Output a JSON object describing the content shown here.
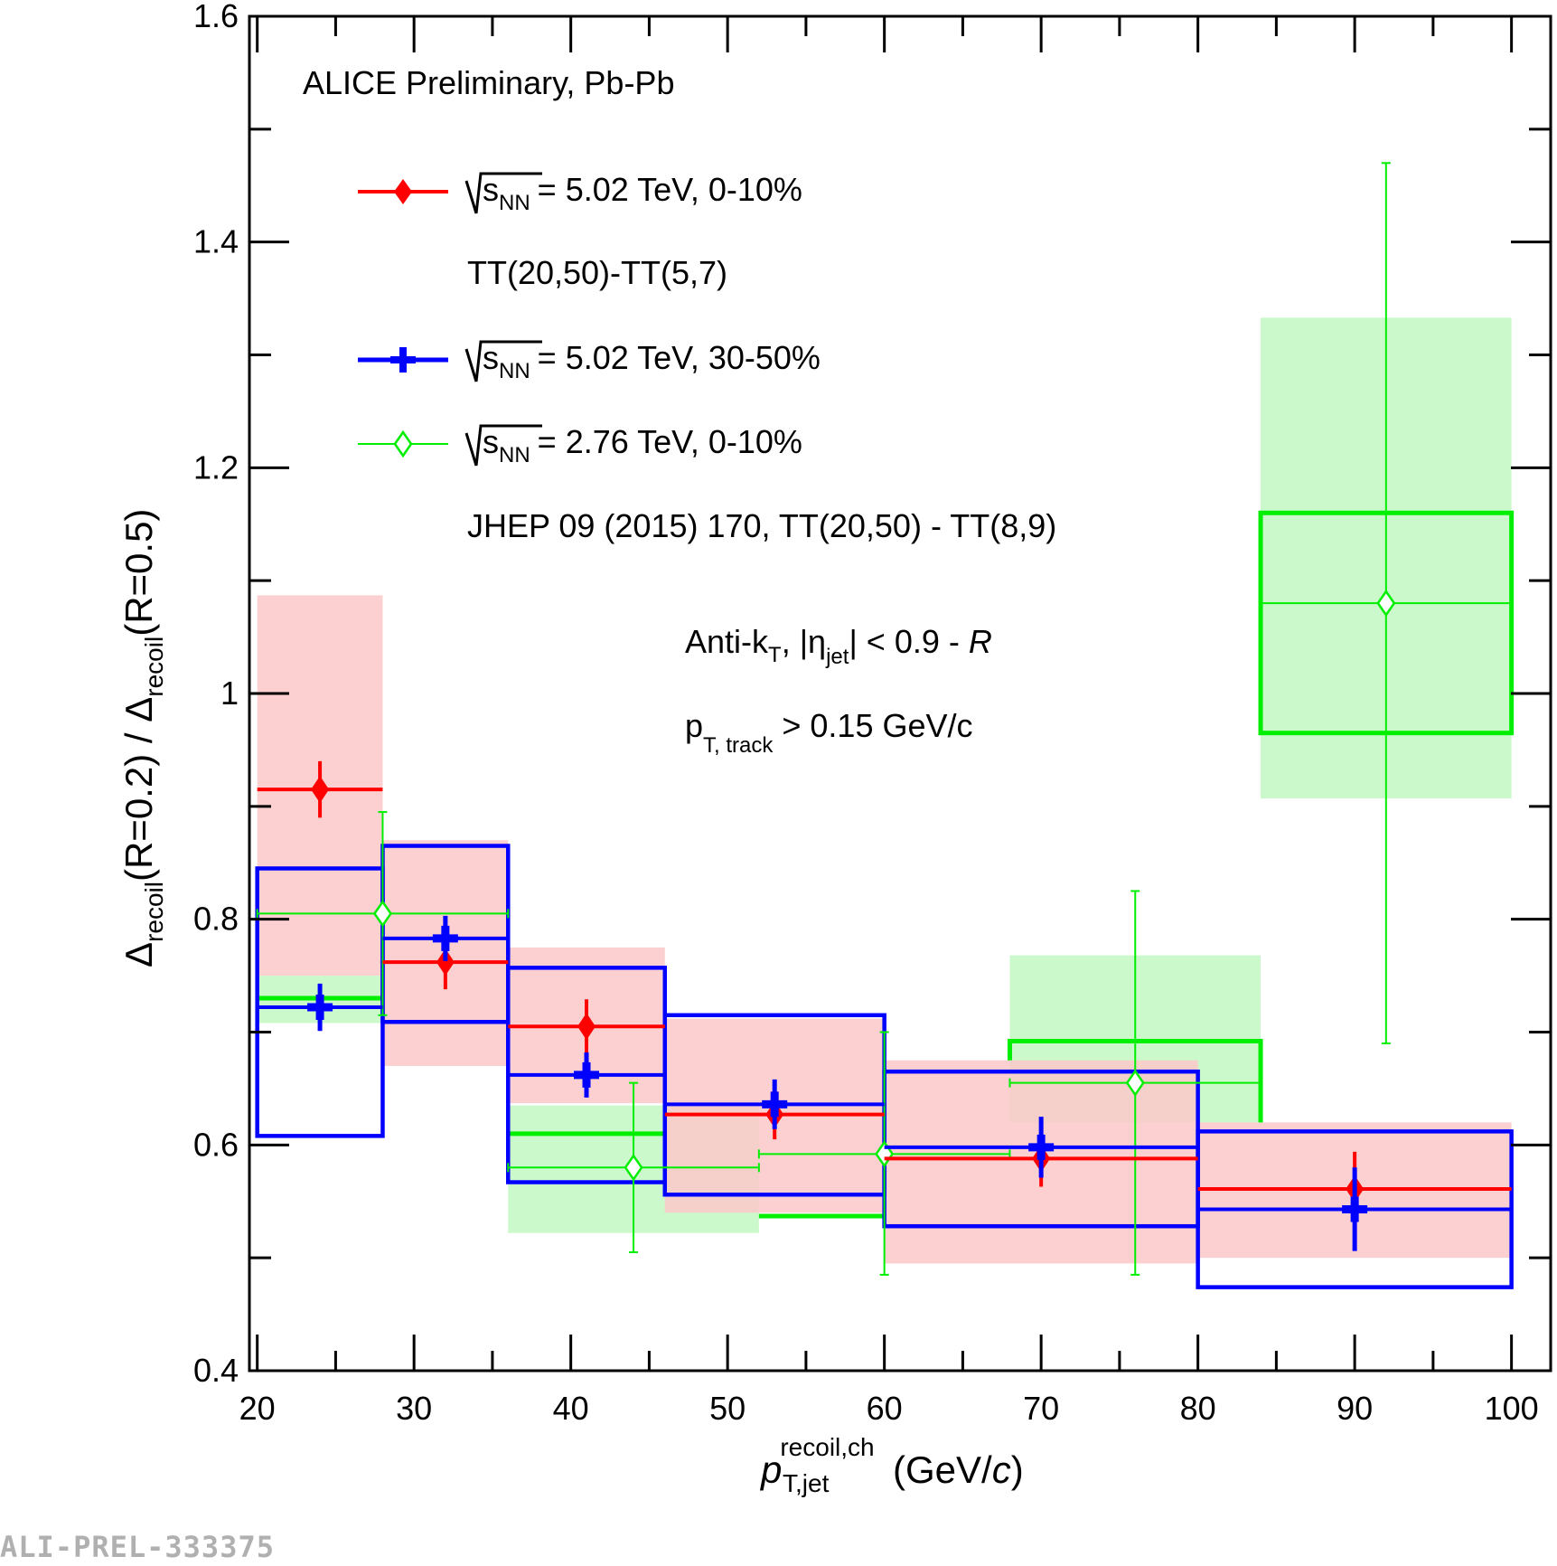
{
  "chart_data": {
    "type": "scatter",
    "title": "ALICE Preliminary, Pb-Pb",
    "xlabel": "p_T,jet^recoil,ch (GeV/c)",
    "ylabel": "Δrecoil(R=0.2) / Δrecoil(R=0.5)",
    "xlim": [
      19.5,
      102.5
    ],
    "ylim": [
      0.4,
      1.6
    ],
    "x_ticks": [
      20,
      30,
      40,
      50,
      60,
      70,
      80,
      90,
      100
    ],
    "y_ticks": [
      0.4,
      0.6,
      0.8,
      1,
      1.2,
      1.4,
      1.6
    ],
    "x_tick_labels": [
      "20",
      "30",
      "40",
      "50",
      "60",
      "70",
      "80",
      "90",
      "100"
    ],
    "y_tick_labels": [
      "0.4",
      "0.6",
      "0.8",
      "1",
      "1.2",
      "1.4",
      "1.6"
    ],
    "annotations": {
      "jet_def": "Anti-k",
      "jet_def_sub": "T",
      "jet_def_mid": ", |η",
      "jet_def_sub2": "jet",
      "jet_def_end": "| < 0.9 - ",
      "jet_def_R": "R",
      "track_cut": "p",
      "track_cut_sub": "T, track",
      "track_cut_end": " > 0.15 GeV/c",
      "x_title_p": "p",
      "x_title_sup": "recoil,ch",
      "x_title_sub": "T,jet",
      "x_title_end": " (GeV/",
      "x_title_c": "c",
      "x_title_close": ")",
      "y_title_delta": "Δ",
      "y_title_sub": "recoil",
      "y_title_mid": "(R=0.2) / ",
      "y_title_end": "(R=0.5)",
      "sqrt_s": "s",
      "sqrt_sub": "NN"
    },
    "series": [
      {
        "name": "= 5.02 TeV, 0-10%",
        "subtitle": "TT(20,50)-TT(5,7)",
        "color": "#ff0000",
        "marker": "diamond-filled",
        "syst_style": "filled-box",
        "syst_color": "#fcc8c8",
        "points": [
          {
            "x": 24,
            "x_low": 20,
            "x_high": 28,
            "y": 0.915,
            "stat": 0.025,
            "syst_low": 0.75,
            "syst_high": 1.087
          },
          {
            "x": 32,
            "x_low": 28,
            "x_high": 36,
            "y": 0.762,
            "stat": 0.024,
            "syst_low": 0.67,
            "syst_high": 0.87
          },
          {
            "x": 41,
            "x_low": 36,
            "x_high": 46,
            "y": 0.705,
            "stat": 0.024,
            "syst_low": 0.637,
            "syst_high": 0.775
          },
          {
            "x": 53,
            "x_low": 46,
            "x_high": 60,
            "y": 0.627,
            "stat": 0.022,
            "syst_low": 0.54,
            "syst_high": 0.712
          },
          {
            "x": 70,
            "x_low": 60,
            "x_high": 80,
            "y": 0.588,
            "stat": 0.025,
            "syst_low": 0.495,
            "syst_high": 0.675
          },
          {
            "x": 90,
            "x_low": 80,
            "x_high": 100,
            "y": 0.561,
            "stat": 0.033,
            "syst_low": 0.5,
            "syst_high": 0.62
          }
        ]
      },
      {
        "name": "= 5.02 TeV, 30-50%",
        "subtitle": "",
        "color": "#0000ff",
        "marker": "cross-filled",
        "syst_style": "open-box",
        "points": [
          {
            "x": 24,
            "x_low": 20,
            "x_high": 28,
            "y": 0.722,
            "stat": 0.021,
            "syst_low": 0.608,
            "syst_high": 0.845
          },
          {
            "x": 32,
            "x_low": 28,
            "x_high": 36,
            "y": 0.783,
            "stat": 0.02,
            "syst_low": 0.709,
            "syst_high": 0.865
          },
          {
            "x": 41,
            "x_low": 36,
            "x_high": 46,
            "y": 0.662,
            "stat": 0.02,
            "syst_low": 0.567,
            "syst_high": 0.757
          },
          {
            "x": 53,
            "x_low": 46,
            "x_high": 60,
            "y": 0.636,
            "stat": 0.022,
            "syst_low": 0.556,
            "syst_high": 0.715
          },
          {
            "x": 70,
            "x_low": 60,
            "x_high": 80,
            "y": 0.598,
            "stat": 0.027,
            "syst_low": 0.528,
            "syst_high": 0.665
          },
          {
            "x": 90,
            "x_low": 80,
            "x_high": 100,
            "y": 0.543,
            "stat": 0.037,
            "syst_low": 0.474,
            "syst_high": 0.612
          }
        ]
      },
      {
        "name": "= 2.76 TeV, 0-10%",
        "subtitle": "JHEP 09 (2015) 170, TT(20,50) - TT(8,9)",
        "color": "#00ee00",
        "marker": "diamond-open",
        "syst_color": "#ccf9cc",
        "points": [
          {
            "x": 28,
            "x_low": 20,
            "x_high": 36,
            "y": 0.805,
            "stat_low": 0.09,
            "stat_high": 0.09,
            "box_x_low": 20,
            "box_x_high": 28,
            "corr_y": 0.73,
            "syst_low": 0.708,
            "syst_high": 0.75
          },
          {
            "x": 44,
            "x_low": 36,
            "x_high": 52,
            "y": 0.58,
            "stat_low": 0.075,
            "stat_high": 0.075,
            "box_x_low": 36,
            "box_x_high": 52,
            "corr_y": 0.61,
            "syst_low": 0.522,
            "syst_high": 0.635
          },
          {
            "x": 60,
            "x_low": 52,
            "x_high": 68,
            "y": 0.592,
            "stat_low": 0.107,
            "stat_high": 0.108,
            "box_x_low": 52,
            "box_x_high": 68,
            "corr_y": 0.537,
            "syst_low": 0.537,
            "syst_high": 0.537
          },
          {
            "x": 76,
            "x_low": 68,
            "x_high": 84,
            "y": 0.655,
            "stat_low": 0.17,
            "stat_high": 0.17,
            "box_x_low": 68,
            "box_x_high": 84,
            "corr_y": 0.692,
            "syst_low": 0.62,
            "syst_high": 0.768
          },
          {
            "x": 92,
            "x_low": 84,
            "x_high": 100,
            "y": 1.08,
            "stat_low": 0.39,
            "stat_high": 0.39,
            "box_x_low": 84,
            "box_x_high": 100,
            "corr_y": 1.062,
            "syst_low": 0.907,
            "syst_high": 1.333
          }
        ]
      }
    ]
  },
  "watermark": "ALI-PREL-333375"
}
